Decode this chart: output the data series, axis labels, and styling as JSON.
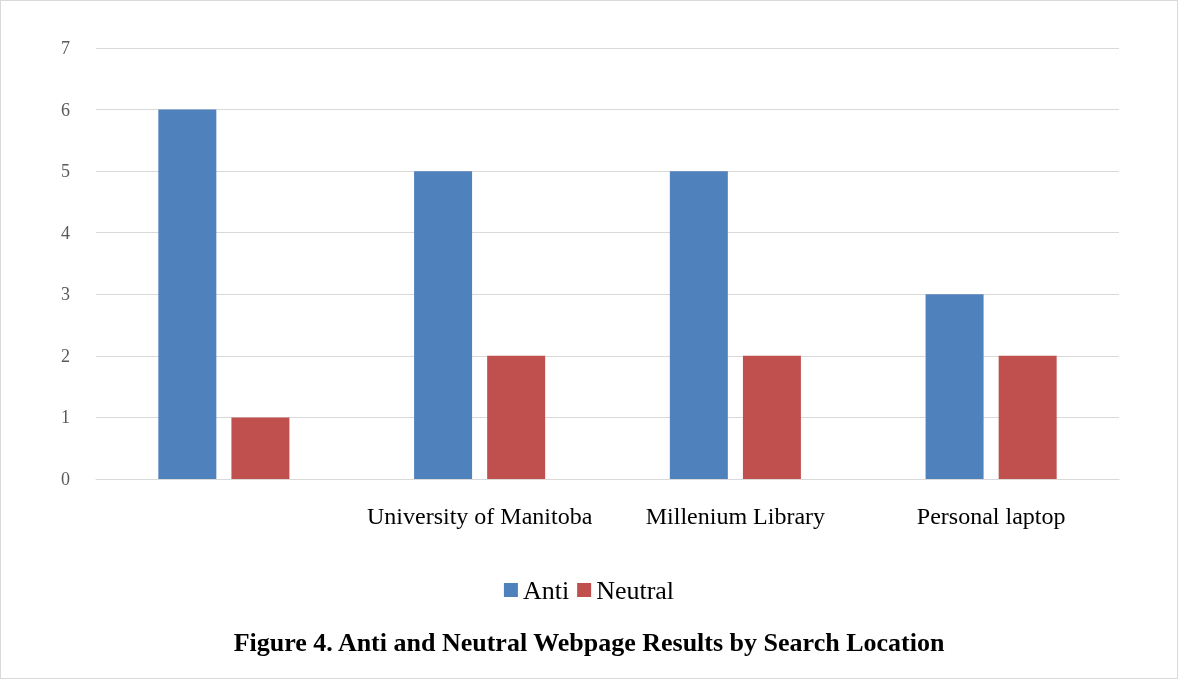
{
  "chart_data": {
    "type": "bar",
    "title": "Figure 4. Anti and Neutral Webpage Results by Search Location",
    "categories": [
      null,
      "University of Manitoba",
      "Millenium Library",
      "Personal laptop"
    ],
    "series": [
      {
        "name": "Anti",
        "color": "#4f81bd",
        "values": [
          6,
          5,
          5,
          3
        ]
      },
      {
        "name": "Neutral",
        "color": "#c0504d",
        "values": [
          1,
          2,
          2,
          2
        ]
      }
    ],
    "ylim": [
      0,
      7
    ],
    "yticks": [
      0,
      1,
      2,
      3,
      4,
      5,
      6,
      7
    ],
    "grid": "y",
    "legend": "bottom"
  }
}
